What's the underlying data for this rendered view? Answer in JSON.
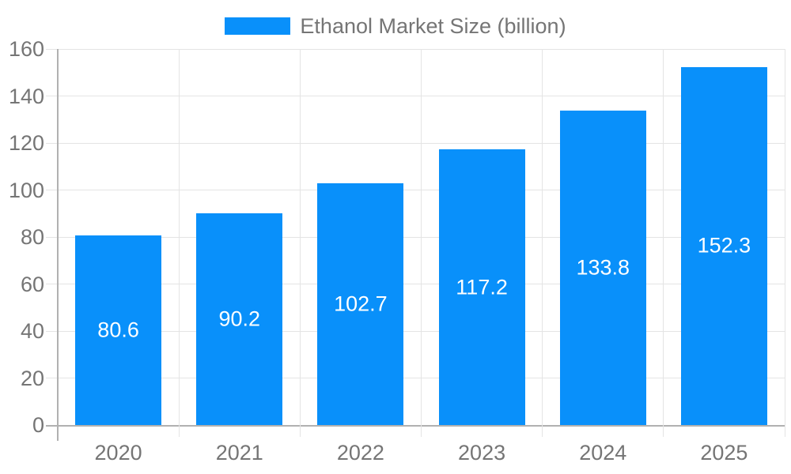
{
  "chart_data": {
    "type": "bar",
    "title": "Ethanol Market Size (billion)",
    "categories": [
      "2020",
      "2021",
      "2022",
      "2023",
      "2024",
      "2025"
    ],
    "series": [
      {
        "name": "Ethanol Market Size (billion)",
        "values": [
          80.6,
          90.2,
          102.7,
          117.2,
          133.8,
          152.3
        ]
      }
    ],
    "value_labels": [
      "80.6",
      "90.2",
      "102.7",
      "117.2",
      "133.8",
      "152.3"
    ],
    "xlabel": "",
    "ylabel": "",
    "ylim": [
      0,
      160
    ],
    "yticks": [
      0,
      20,
      40,
      60,
      80,
      100,
      120,
      140,
      160
    ],
    "grid": "on",
    "legend_position": "top"
  },
  "colors": {
    "bar": "#0990fa",
    "grid_line": "#e4e4e4",
    "axis_line": "#b1b1b1",
    "axis_text": "#757575",
    "value_label_text": "#ffffff",
    "background": "#ffffff"
  }
}
